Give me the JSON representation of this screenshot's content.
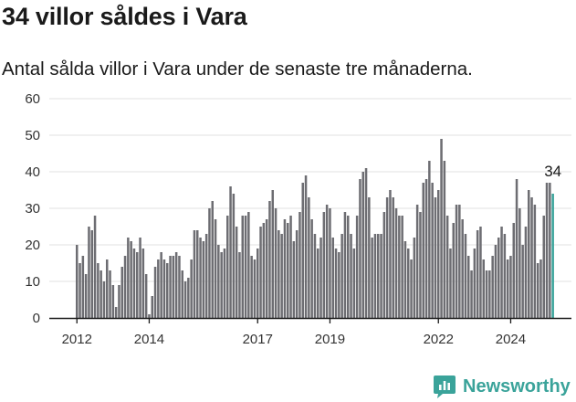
{
  "header": {
    "title": "34 villor såldes i Vara",
    "subtitle": "Antal sålda villor i Vara under de senaste tre månaderna."
  },
  "brand": {
    "name": "Newsworthy",
    "icon": "newsworthy-logo-icon",
    "color": "#3aa39a"
  },
  "colors": {
    "bar": "#6d6d72",
    "highlight": "#3aa39a",
    "grid": "#e2e2e2",
    "axis": "#1a1a1a"
  },
  "chart_data": {
    "type": "bar",
    "start_month": "2012-01",
    "ylim": [
      0,
      60
    ],
    "yticks": [
      0,
      10,
      20,
      30,
      40,
      50,
      60
    ],
    "xticks": [
      "2012",
      "2014",
      "2017",
      "2019",
      "2022",
      "2024"
    ],
    "grid": "horizontal",
    "values": [
      20,
      15,
      17,
      12,
      25,
      24,
      28,
      15,
      13,
      10,
      16,
      13,
      9,
      3,
      9,
      14,
      17,
      22,
      21,
      19,
      18,
      22,
      19,
      12,
      1,
      6,
      14,
      16,
      18,
      16,
      15,
      17,
      17,
      18,
      17,
      13,
      10,
      11,
      16,
      24,
      24,
      22,
      21,
      23,
      30,
      32,
      27,
      20,
      18,
      19,
      28,
      36,
      34,
      25,
      18,
      28,
      28,
      29,
      17,
      16,
      19,
      25,
      26,
      27,
      32,
      35,
      30,
      24,
      23,
      27,
      26,
      28,
      21,
      24,
      29,
      37,
      39,
      33,
      27,
      23,
      19,
      22,
      29,
      31,
      30,
      22,
      19,
      18,
      23,
      29,
      28,
      23,
      19,
      28,
      38,
      40,
      41,
      33,
      22,
      23,
      23,
      23,
      29,
      33,
      35,
      33,
      30,
      28,
      28,
      21,
      19,
      16,
      22,
      31,
      29,
      37,
      38,
      43,
      37,
      33,
      35,
      49,
      43,
      28,
      19,
      26,
      31,
      31,
      27,
      23,
      17,
      13,
      19,
      24,
      25,
      16,
      13,
      13,
      17,
      20,
      22,
      25,
      23,
      16,
      17,
      26,
      38,
      30,
      20,
      25,
      35,
      33,
      31,
      15,
      16,
      28,
      37,
      37,
      34
    ],
    "last_value_label": "34"
  }
}
